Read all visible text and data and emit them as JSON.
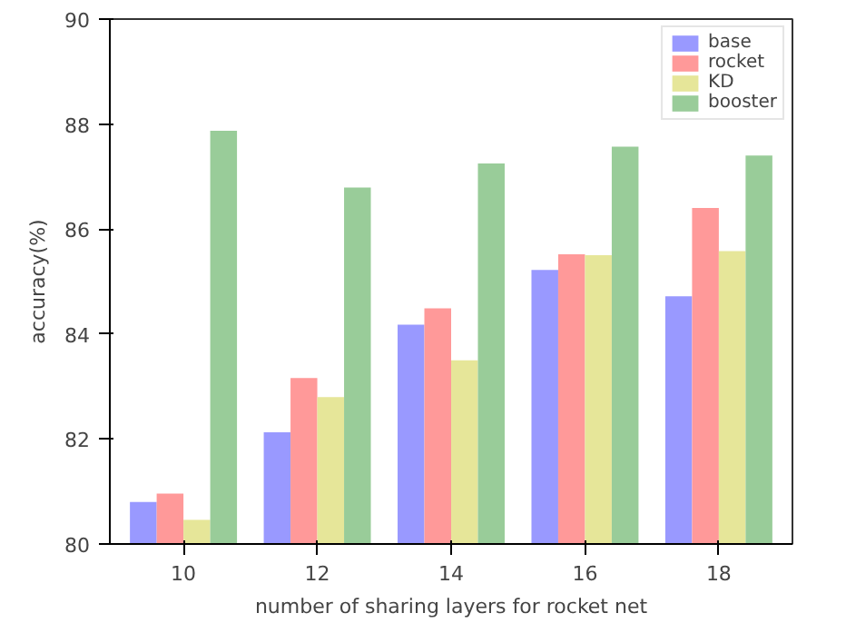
{
  "chart_data": {
    "type": "bar",
    "xlabel": "number of sharing layers for rocket net",
    "ylabel": "accuracy(%)",
    "categories": [
      "10",
      "12",
      "14",
      "16",
      "18"
    ],
    "series": [
      {
        "name": "base",
        "color": "#9999ff",
        "values": [
          80.8,
          82.13,
          84.18,
          85.22,
          84.72
        ]
      },
      {
        "name": "rocket",
        "color": "#ff9999",
        "values": [
          80.96,
          83.16,
          84.49,
          85.52,
          86.4
        ]
      },
      {
        "name": "KD",
        "color": "#e6e699",
        "values": [
          80.46,
          82.8,
          83.5,
          85.5,
          85.58
        ]
      },
      {
        "name": "booster",
        "color": "#99cc99",
        "values": [
          87.87,
          86.79,
          87.25,
          87.57,
          87.4
        ]
      }
    ],
    "ylim": [
      80,
      90
    ],
    "yticks": [
      80,
      82,
      84,
      86,
      88,
      90
    ],
    "grid": false,
    "legend": "top right"
  }
}
